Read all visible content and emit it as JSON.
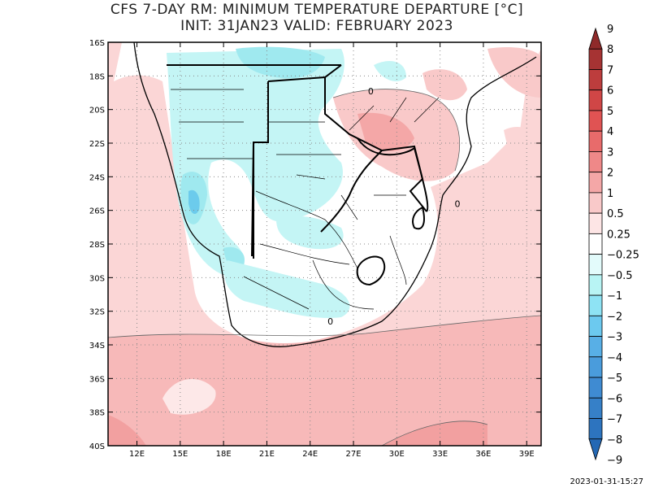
{
  "title": {
    "line1": "CFS 7-DAY RM: MINIMUM TEMPERATURE DEPARTURE [°C]",
    "line2": "INIT: 31JAN23 VALID: FEBRUARY 2023"
  },
  "timestamp": "2023-01-31-15:27",
  "map": {
    "lon_range": [
      10,
      40
    ],
    "lat_range": [
      -40,
      -16
    ],
    "lat_ticks": [
      {
        "v": -16,
        "label": "16S"
      },
      {
        "v": -18,
        "label": "18S"
      },
      {
        "v": -20,
        "label": "20S"
      },
      {
        "v": -22,
        "label": "22S"
      },
      {
        "v": -24,
        "label": "24S"
      },
      {
        "v": -26,
        "label": "26S"
      },
      {
        "v": -28,
        "label": "28S"
      },
      {
        "v": -30,
        "label": "30S"
      },
      {
        "v": -32,
        "label": "32S"
      },
      {
        "v": -34,
        "label": "34S"
      },
      {
        "v": -36,
        "label": "36S"
      },
      {
        "v": -38,
        "label": "38S"
      },
      {
        "v": -40,
        "label": "40S"
      }
    ],
    "lon_ticks": [
      {
        "v": 12,
        "label": "12E"
      },
      {
        "v": 15,
        "label": "15E"
      },
      {
        "v": 18,
        "label": "18E"
      },
      {
        "v": 21,
        "label": "21E"
      },
      {
        "v": 24,
        "label": "24E"
      },
      {
        "v": 27,
        "label": "27E"
      },
      {
        "v": 30,
        "label": "30E"
      },
      {
        "v": 33,
        "label": "33E"
      },
      {
        "v": 36,
        "label": "36E"
      },
      {
        "v": 39,
        "label": "39E"
      }
    ],
    "contour_labels": [
      {
        "text": "0",
        "lon": 28.2,
        "lat": -19.1
      },
      {
        "text": "0",
        "lon": 34.2,
        "lat": -25.8
      },
      {
        "text": "0",
        "lon": 25.4,
        "lat": -32.8
      }
    ]
  },
  "colorbar": {
    "labels": [
      "9",
      "8",
      "7",
      "6",
      "5",
      "4",
      "3",
      "2",
      "1",
      "0.5",
      "0.25",
      "−0.25",
      "−0.5",
      "−1",
      "−2",
      "−3",
      "−4",
      "−5",
      "−6",
      "−7",
      "−8",
      "−9"
    ],
    "colors": [
      "#8f2a2a",
      "#a63333",
      "#bd3d3d",
      "#d04646",
      "#e05353",
      "#e86b6b",
      "#ef8888",
      "#f4a7a7",
      "#f9c9c9",
      "#fde5e5",
      "#ffffff",
      "#e3fbfb",
      "#b8f4f4",
      "#8ee3f4",
      "#6cc9ef",
      "#58afe6",
      "#4a9cdc",
      "#3f8bd2",
      "#3680c8",
      "#2d74bf",
      "#2468b4"
    ]
  },
  "colors": {
    "warm_light": "#fbd6d6",
    "warm_mid": "#f7b9b9",
    "warm_strong": "#f2a0a0",
    "cool_light": "#c4f5f5",
    "cool_mid": "#9fe9ef",
    "cool_strong": "#6ccbec"
  }
}
